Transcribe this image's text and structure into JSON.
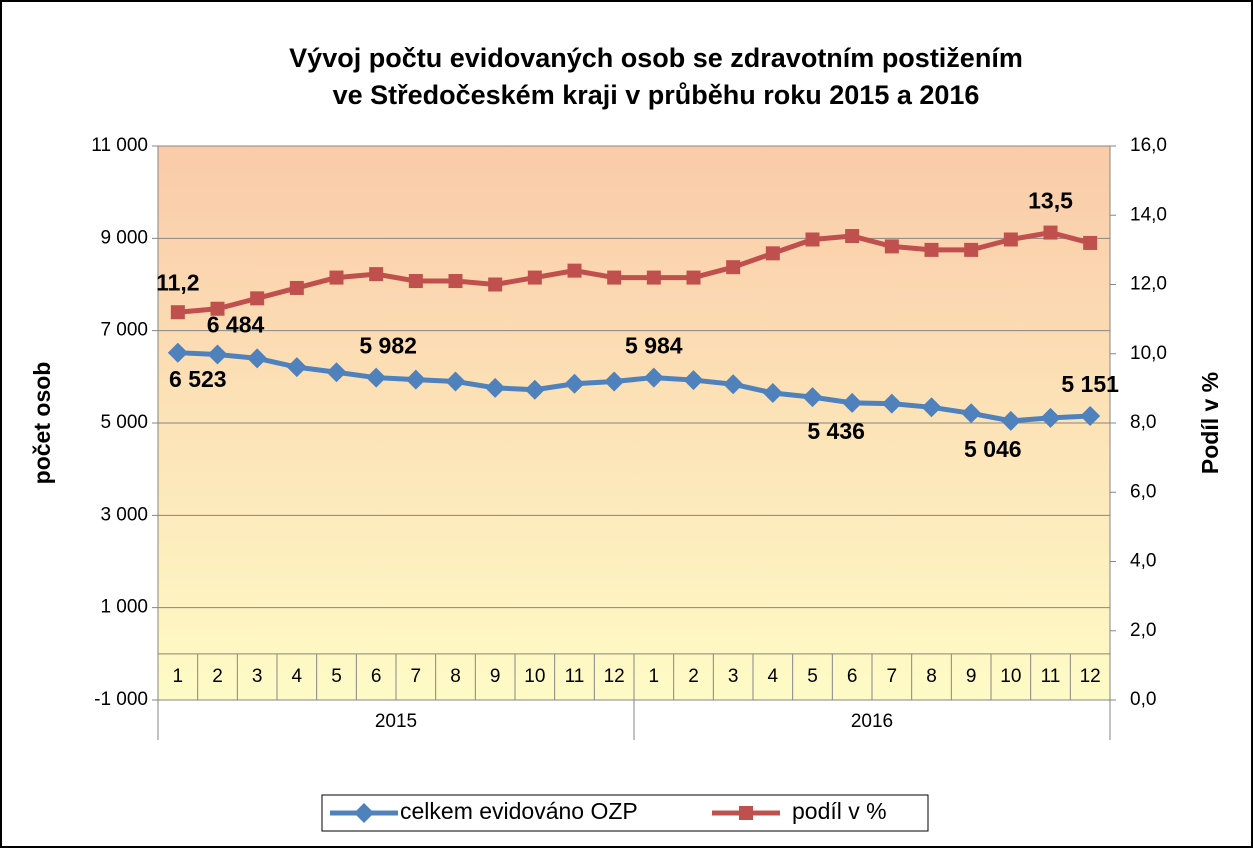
{
  "chart_data": {
    "type": "line",
    "title": [
      "Vývoj počtu evidovaných osob se zdravotním postižením",
      "ve Středočeském kraji v průběhu roku 2015 a 2016"
    ],
    "categories": [
      "1",
      "2",
      "3",
      "4",
      "5",
      "6",
      "7",
      "8",
      "9",
      "10",
      "11",
      "12",
      "1",
      "2",
      "3",
      "4",
      "5",
      "6",
      "7",
      "8",
      "9",
      "10",
      "11",
      "12"
    ],
    "groups": [
      "2015",
      "2016"
    ],
    "ylabel": "počet osob",
    "y2label": "Podíl v %",
    "ylim": [
      -1000,
      11000
    ],
    "yticks": [
      {
        "value": -1000,
        "label": "-1 000"
      },
      {
        "value": 1000,
        "label": "1 000"
      },
      {
        "value": 3000,
        "label": "3 000"
      },
      {
        "value": 5000,
        "label": "5 000"
      },
      {
        "value": 7000,
        "label": "7 000"
      },
      {
        "value": 9000,
        "label": "9 000"
      },
      {
        "value": 11000,
        "label": "11 000"
      }
    ],
    "y2lim": [
      0,
      16
    ],
    "y2ticks": [
      {
        "value": 0,
        "label": "0,0"
      },
      {
        "value": 2,
        "label": "2,0"
      },
      {
        "value": 4,
        "label": "4,0"
      },
      {
        "value": 6,
        "label": "6,0"
      },
      {
        "value": 8,
        "label": "8,0"
      },
      {
        "value": 10,
        "label": "10,0"
      },
      {
        "value": 12,
        "label": "12,0"
      },
      {
        "value": 14,
        "label": "14,0"
      },
      {
        "value": 16,
        "label": "16,0"
      }
    ],
    "grid": true,
    "legend": "bottom",
    "series": [
      {
        "name": "celkem evidováno OZP",
        "color": "#4f81bd",
        "marker": "diamond",
        "values": [
          6523,
          6484,
          6400,
          6210,
          6100,
          5982,
          5940,
          5900,
          5760,
          5720,
          5850,
          5900,
          5984,
          5930,
          5840,
          5650,
          5560,
          5436,
          5420,
          5340,
          5210,
          5046,
          5110,
          5151
        ],
        "value_labels": [
          "6 523",
          "6 484",
          null,
          null,
          null,
          "5 982",
          null,
          null,
          null,
          null,
          null,
          null,
          "5 984",
          null,
          null,
          null,
          null,
          "5 436",
          null,
          null,
          null,
          "5 046",
          null,
          "5 151"
        ]
      },
      {
        "name": "podíl v %",
        "color": "#c0504d",
        "marker": "square",
        "axis": "y2",
        "values": [
          11.2,
          11.3,
          11.6,
          11.9,
          12.2,
          12.3,
          12.1,
          12.1,
          12.0,
          12.2,
          12.4,
          12.2,
          12.2,
          12.2,
          12.5,
          12.9,
          13.3,
          13.4,
          13.1,
          13.0,
          13.0,
          13.3,
          13.5,
          13.2
        ],
        "value_labels": [
          "11,2",
          null,
          null,
          null,
          null,
          null,
          null,
          null,
          null,
          null,
          null,
          null,
          null,
          null,
          null,
          null,
          null,
          null,
          null,
          null,
          null,
          null,
          "13,5",
          null
        ]
      }
    ]
  }
}
